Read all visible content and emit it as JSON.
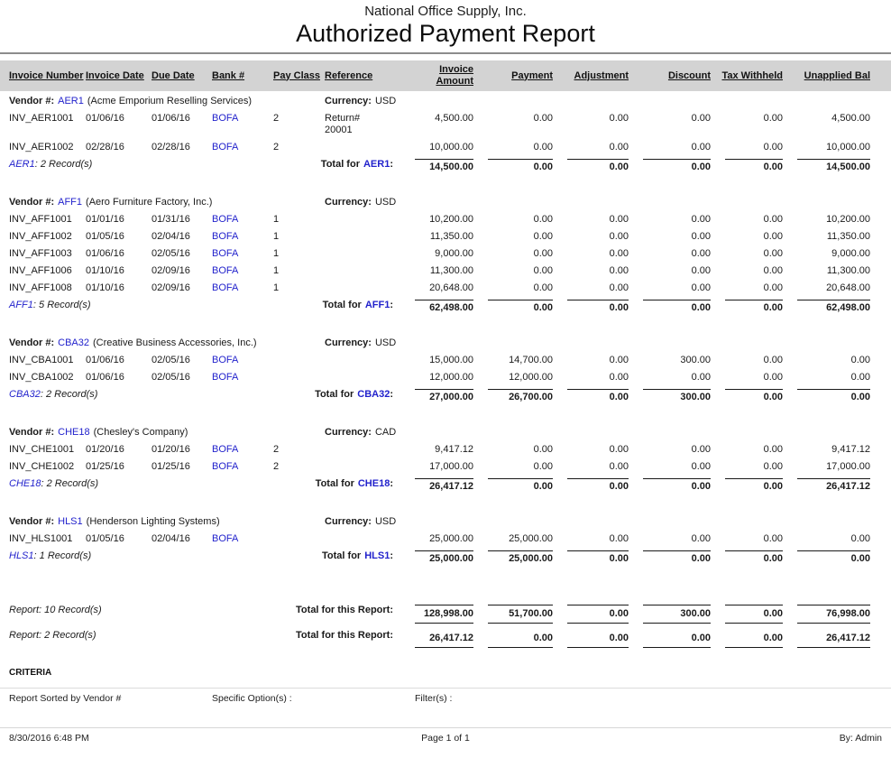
{
  "header": {
    "company": "National Office Supply, Inc.",
    "title": "Authorized Payment Report"
  },
  "columns": [
    "Invoice Number",
    "Invoice Date",
    "Due Date",
    "Bank #",
    "Pay Class",
    "Reference",
    "Invoice Amount",
    "Payment",
    "Adjustment",
    "Discount",
    "Tax Withheld",
    "Unapplied Bal"
  ],
  "labels": {
    "vendor_prefix": "Vendor #:",
    "currency_prefix": "Currency:",
    "total_for_prefix": "Total for",
    "colon": ":"
  },
  "colors": {
    "link": "#2222CC",
    "header_band": "#D3D3D3"
  },
  "vendors": [
    {
      "code": "AER1",
      "name": "(Acme Emporium Reselling Services)",
      "currency": "USD",
      "rows": [
        {
          "invoice": "INV_AER1001",
          "invoice_date": "01/06/16",
          "due_date": "01/06/16",
          "bank": "BOFA",
          "pay_class": "2",
          "reference": "Return#\n20001",
          "amounts": [
            "4,500.00",
            "0.00",
            "0.00",
            "0.00",
            "0.00",
            "4,500.00"
          ]
        },
        {
          "invoice": "INV_AER1002",
          "invoice_date": "02/28/16",
          "due_date": "02/28/16",
          "bank": "BOFA",
          "pay_class": "2",
          "reference": "",
          "amounts": [
            "10,000.00",
            "0.00",
            "0.00",
            "0.00",
            "0.00",
            "10,000.00"
          ]
        }
      ],
      "records_code": "AER1",
      "records_rest": ": 2 Record(s)",
      "totals": [
        "14,500.00",
        "0.00",
        "0.00",
        "0.00",
        "0.00",
        "14,500.00"
      ]
    },
    {
      "code": "AFF1",
      "name": "(Aero Furniture Factory, Inc.)",
      "currency": "USD",
      "rows": [
        {
          "invoice": "INV_AFF1001",
          "invoice_date": "01/01/16",
          "due_date": "01/31/16",
          "bank": "BOFA",
          "pay_class": "1",
          "reference": "",
          "amounts": [
            "10,200.00",
            "0.00",
            "0.00",
            "0.00",
            "0.00",
            "10,200.00"
          ]
        },
        {
          "invoice": "INV_AFF1002",
          "invoice_date": "01/05/16",
          "due_date": "02/04/16",
          "bank": "BOFA",
          "pay_class": "1",
          "reference": "",
          "amounts": [
            "11,350.00",
            "0.00",
            "0.00",
            "0.00",
            "0.00",
            "11,350.00"
          ]
        },
        {
          "invoice": "INV_AFF1003",
          "invoice_date": "01/06/16",
          "due_date": "02/05/16",
          "bank": "BOFA",
          "pay_class": "1",
          "reference": "",
          "amounts": [
            "9,000.00",
            "0.00",
            "0.00",
            "0.00",
            "0.00",
            "9,000.00"
          ]
        },
        {
          "invoice": "INV_AFF1006",
          "invoice_date": "01/10/16",
          "due_date": "02/09/16",
          "bank": "BOFA",
          "pay_class": "1",
          "reference": "",
          "amounts": [
            "11,300.00",
            "0.00",
            "0.00",
            "0.00",
            "0.00",
            "11,300.00"
          ]
        },
        {
          "invoice": "INV_AFF1008",
          "invoice_date": "01/10/16",
          "due_date": "02/09/16",
          "bank": "BOFA",
          "pay_class": "1",
          "reference": "",
          "amounts": [
            "20,648.00",
            "0.00",
            "0.00",
            "0.00",
            "0.00",
            "20,648.00"
          ]
        }
      ],
      "records_code": "AFF1",
      "records_rest": ": 5 Record(s)",
      "totals": [
        "62,498.00",
        "0.00",
        "0.00",
        "0.00",
        "0.00",
        "62,498.00"
      ]
    },
    {
      "code": "CBA32",
      "name": "(Creative Business Accessories, Inc.)",
      "currency": "USD",
      "rows": [
        {
          "invoice": "INV_CBA1001",
          "invoice_date": "01/06/16",
          "due_date": "02/05/16",
          "bank": "BOFA",
          "pay_class": "",
          "reference": "",
          "amounts": [
            "15,000.00",
            "14,700.00",
            "0.00",
            "300.00",
            "0.00",
            "0.00"
          ]
        },
        {
          "invoice": "INV_CBA1002",
          "invoice_date": "01/06/16",
          "due_date": "02/05/16",
          "bank": "BOFA",
          "pay_class": "",
          "reference": "",
          "amounts": [
            "12,000.00",
            "12,000.00",
            "0.00",
            "0.00",
            "0.00",
            "0.00"
          ]
        }
      ],
      "records_code": "CBA32",
      "records_rest": ": 2 Record(s)",
      "totals": [
        "27,000.00",
        "26,700.00",
        "0.00",
        "300.00",
        "0.00",
        "0.00"
      ]
    },
    {
      "code": "CHE18",
      "name": "(Chesley's Company)",
      "currency": "CAD",
      "rows": [
        {
          "invoice": "INV_CHE1001",
          "invoice_date": "01/20/16",
          "due_date": "01/20/16",
          "bank": "BOFA",
          "pay_class": "2",
          "reference": "",
          "amounts": [
            "9,417.12",
            "0.00",
            "0.00",
            "0.00",
            "0.00",
            "9,417.12"
          ]
        },
        {
          "invoice": "INV_CHE1002",
          "invoice_date": "01/25/16",
          "due_date": "01/25/16",
          "bank": "BOFA",
          "pay_class": "2",
          "reference": "",
          "amounts": [
            "17,000.00",
            "0.00",
            "0.00",
            "0.00",
            "0.00",
            "17,000.00"
          ]
        }
      ],
      "records_code": "CHE18",
      "records_rest": ": 2 Record(s)",
      "totals": [
        "26,417.12",
        "0.00",
        "0.00",
        "0.00",
        "0.00",
        "26,417.12"
      ]
    },
    {
      "code": "HLS1",
      "name": "(Henderson Lighting Systems)",
      "currency": "USD",
      "rows": [
        {
          "invoice": "INV_HLS1001",
          "invoice_date": "01/05/16",
          "due_date": "02/04/16",
          "bank": "BOFA",
          "pay_class": "",
          "reference": "",
          "amounts": [
            "25,000.00",
            "25,000.00",
            "0.00",
            "0.00",
            "0.00",
            "0.00"
          ]
        }
      ],
      "records_code": "HLS1",
      "records_rest": ": 1 Record(s)",
      "totals": [
        "25,000.00",
        "25,000.00",
        "0.00",
        "0.00",
        "0.00",
        "0.00"
      ]
    }
  ],
  "report_totals": [
    {
      "records": "Report: 10 Record(s)",
      "label": "Total for this Report:",
      "totals": [
        "128,998.00",
        "51,700.00",
        "0.00",
        "300.00",
        "0.00",
        "76,998.00"
      ]
    },
    {
      "records": "Report: 2 Record(s)",
      "label": "Total for this Report:",
      "totals": [
        "26,417.12",
        "0.00",
        "0.00",
        "0.00",
        "0.00",
        "26,417.12"
      ]
    }
  ],
  "criteria": {
    "title": "CRITERIA",
    "sorted_by": "Report Sorted by Vendor #",
    "specific_options": "Specific Option(s) :",
    "filters": "Filter(s) :"
  },
  "footer": {
    "datetime": "8/30/2016 6:48 PM",
    "page": "Page 1 of 1",
    "by": "By: Admin"
  }
}
